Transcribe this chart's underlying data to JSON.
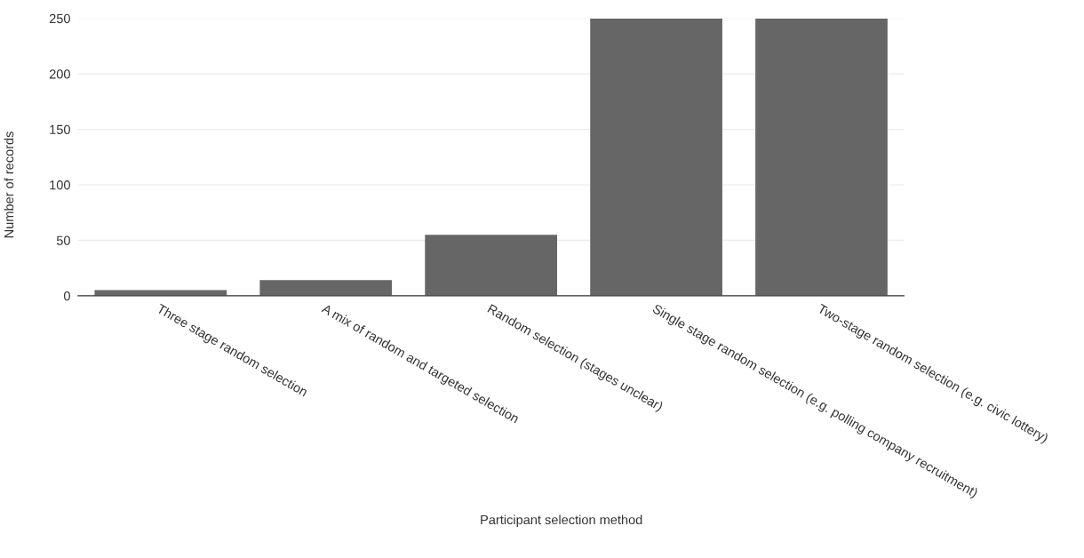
{
  "chart_data": {
    "type": "bar",
    "xlabel": "Participant selection method",
    "ylabel": "Number of records",
    "categories": [
      "Three stage random selection",
      "A mix of random and targeted selection",
      "Random selection (stages unclear)",
      "Single stage random selection (e.g. polling company recruitment)",
      "Two-stage random selection (e.g. civic lottery)"
    ],
    "values": [
      5,
      14,
      55,
      250,
      250
    ],
    "color": "#666666",
    "ylim": [
      0,
      250
    ],
    "yticks": [
      0,
      50,
      100,
      150,
      200,
      250
    ],
    "grid": "y",
    "legend": false
  }
}
